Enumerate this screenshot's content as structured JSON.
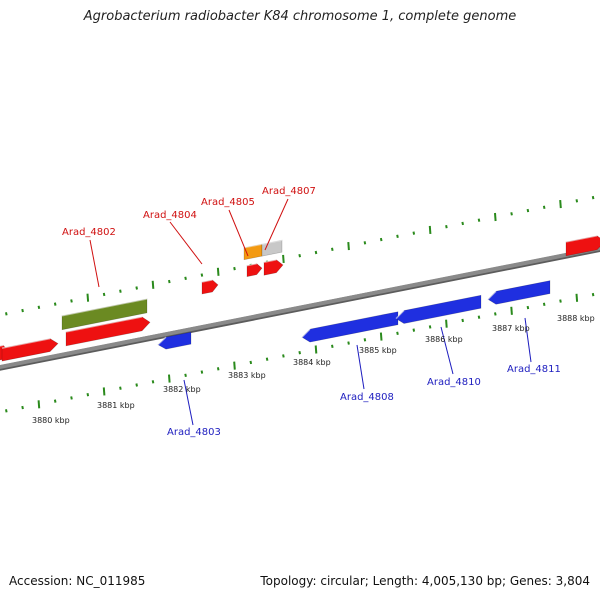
{
  "title": "Agrobacterium radiobacter K84 chromosome 1, complete genome",
  "footer": {
    "accession": "Accession: NC_011985",
    "stats": "Topology: circular; Length: 4,005,130 bp; Genes: 3,804"
  },
  "colors": {
    "forward_gene": "#ee1111",
    "reverse_gene": "#1f2fe0",
    "rna_gene": "#6b8a22",
    "misc_orange": "#f39a12",
    "misc_gray": "#c8c8c8",
    "backbone": "#8a8a8a",
    "tick": "#2a8a1c",
    "label_forward": "#d01010",
    "label_reverse": "#1d1dbf"
  },
  "kbp_ticks": [
    {
      "label": "3880 kbp"
    },
    {
      "label": "3881 kbp"
    },
    {
      "label": "3882 kbp"
    },
    {
      "label": "3883 kbp"
    },
    {
      "label": "3884 kbp"
    },
    {
      "label": "3885 kbp"
    },
    {
      "label": "3886 kbp"
    },
    {
      "label": "3887 kbp"
    },
    {
      "label": "3888 kbp"
    }
  ],
  "gene_labels": [
    {
      "text": "Arad_4802",
      "strand": "forward"
    },
    {
      "text": "Arad_4804",
      "strand": "forward"
    },
    {
      "text": "Arad_4805",
      "strand": "forward"
    },
    {
      "text": "Arad_4807",
      "strand": "forward"
    },
    {
      "text": "Arad_4803",
      "strand": "reverse"
    },
    {
      "text": "Arad_4808",
      "strand": "reverse"
    },
    {
      "text": "Arad_4810",
      "strand": "reverse"
    },
    {
      "text": "Arad_4811",
      "strand": "reverse"
    }
  ]
}
